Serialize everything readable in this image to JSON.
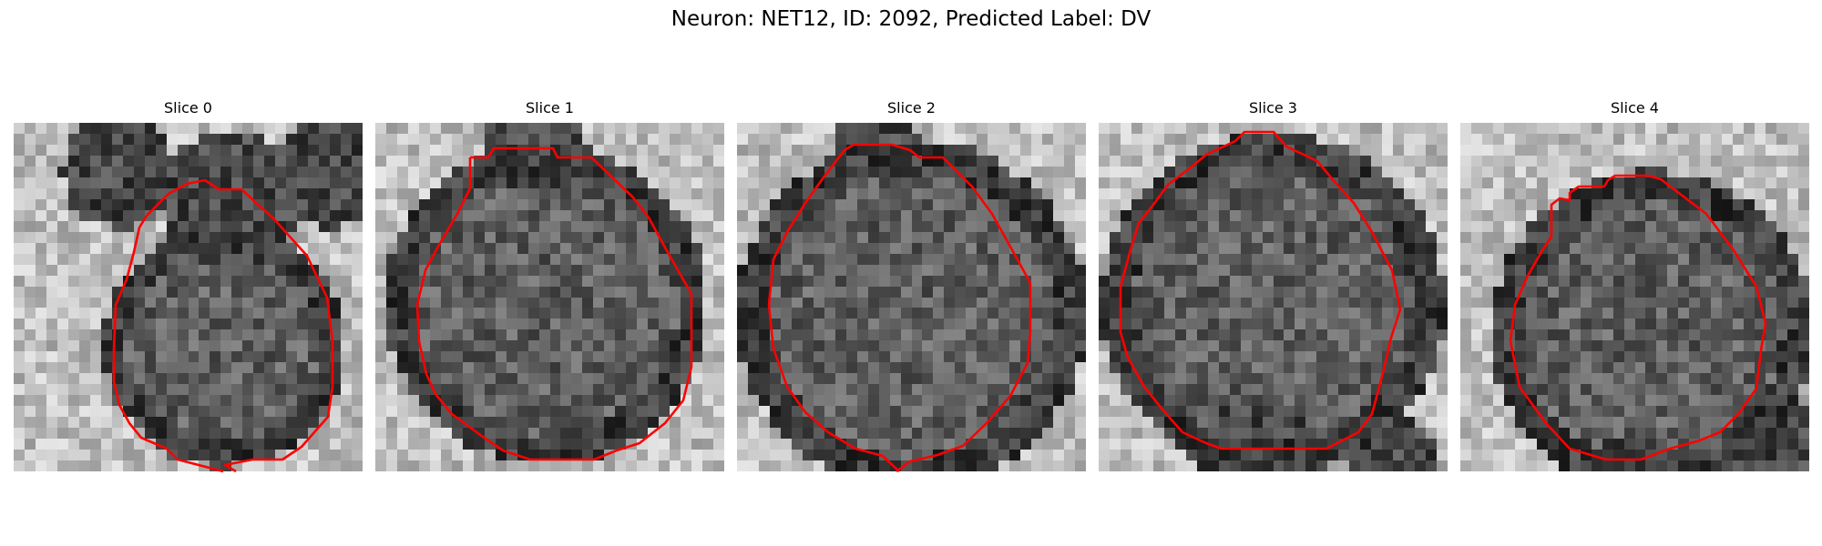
{
  "figure": {
    "title": "Neuron: NET12, ID: 2092, Predicted Label: DV",
    "contour_color": "#ff0000"
  },
  "panels": [
    {
      "title": "Slice 0"
    },
    {
      "title": "Slice 1"
    },
    {
      "title": "Slice 2"
    },
    {
      "title": "Slice 3"
    },
    {
      "title": "Slice 4"
    }
  ]
}
